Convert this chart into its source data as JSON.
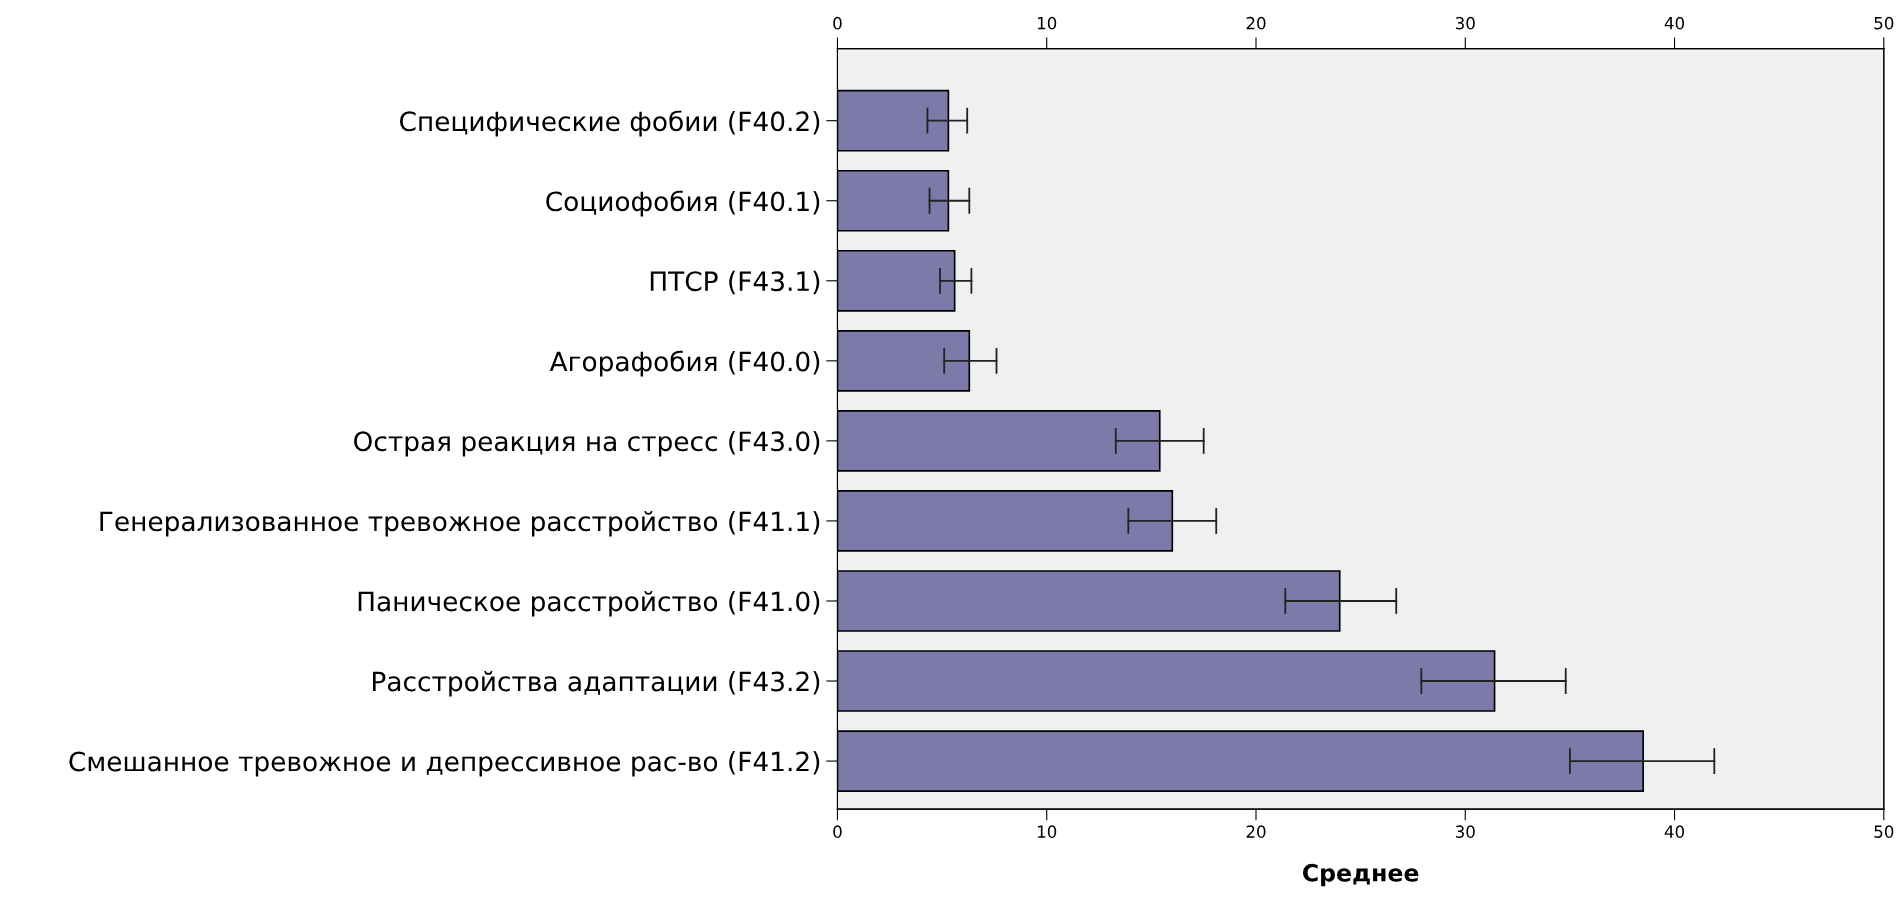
{
  "chart_data": {
    "type": "bar",
    "orientation": "horizontal",
    "categories": [
      "Специфические фобии (F40.2)",
      "Социофобия (F40.1)",
      "ПТСР (F43.1)",
      "Агорафобия (F40.0)",
      "Острая реакция на стресс (F43.0)",
      "Генерализованное тревожное расстройство (F41.1)",
      "Паническое расстройство (F41.0)",
      "Расстройства адаптации (F43.2)",
      "Смешанное тревожное и депрессивное рас-во (F41.2)"
    ],
    "values": [
      5.3,
      5.3,
      5.6,
      6.3,
      15.4,
      16.0,
      24.0,
      31.4,
      38.5
    ],
    "errors": [
      [
        4.3,
        6.2
      ],
      [
        4.4,
        6.3
      ],
      [
        4.9,
        6.4
      ],
      [
        5.1,
        7.6
      ],
      [
        13.3,
        17.5
      ],
      [
        13.9,
        18.1
      ],
      [
        21.4,
        26.7
      ],
      [
        27.9,
        34.8
      ],
      [
        35.0,
        41.9
      ]
    ],
    "color": "#7b7aa8",
    "xlabel": "Среднее",
    "xlim": [
      0,
      50
    ],
    "xticks": [
      0,
      10,
      20,
      30,
      40,
      50
    ],
    "x2lim": [
      0,
      50
    ],
    "x2ticks": [
      0,
      10,
      20,
      30,
      40,
      50
    ],
    "grid": false
  }
}
